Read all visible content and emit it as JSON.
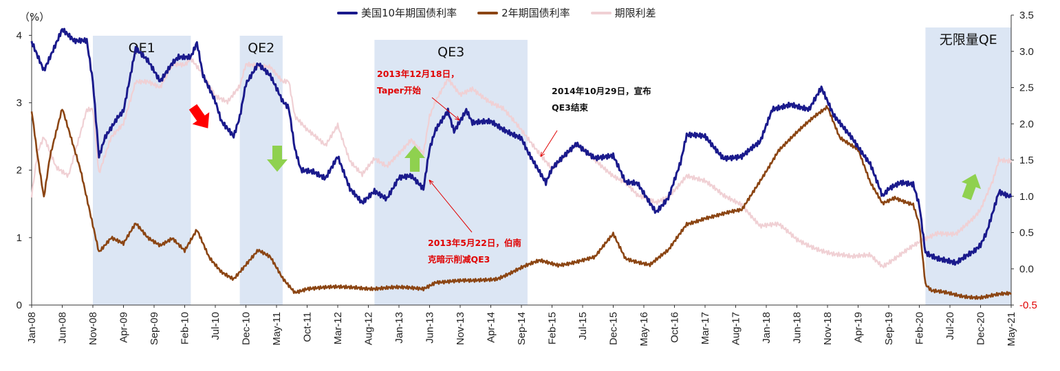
{
  "chart_data": {
    "type": "line",
    "left_axis_label": "（%）",
    "y_left": {
      "min": 0,
      "max": 4.3,
      "ticks": [
        0,
        1,
        2,
        3,
        4
      ]
    },
    "y_right": {
      "min": -0.5,
      "max": 3.5,
      "ticks": [
        "3.5",
        "3.0",
        "2.5",
        "2.0",
        "1.5",
        "1.0",
        "0.5",
        "0.0",
        "-0.5"
      ]
    },
    "x_ticks": [
      "Jan-08",
      "Jun-08",
      "Nov-08",
      "Apr-09",
      "Sep-09",
      "Feb-10",
      "Jul-10",
      "Dec-10",
      "May-11",
      "Oct-11",
      "Mar-12",
      "Aug-12",
      "Jan-13",
      "Jun-13",
      "Nov-13",
      "Apr-14",
      "Sep-14",
      "Feb-15",
      "Jul-15",
      "Dec-15",
      "May-16",
      "Oct-16",
      "Mar-17",
      "Aug-17",
      "Jan-18",
      "Jun-18",
      "Nov-18",
      "Apr-19",
      "Sep-19",
      "Feb-20",
      "Jul-20",
      "Dec-20",
      "May-21"
    ],
    "x_range": [
      "2008-01",
      "2021-05"
    ],
    "grid": false,
    "legend_position": "top-center",
    "series": [
      {
        "name": "美国10年期国债利率",
        "axis": "left",
        "color": "#1a1a8c",
        "points": [
          [
            "2008-01",
            3.9
          ],
          [
            "2008-03",
            3.5
          ],
          [
            "2008-06",
            4.1
          ],
          [
            "2008-08",
            3.9
          ],
          [
            "2008-10",
            3.9
          ],
          [
            "2008-11",
            3.3
          ],
          [
            "2008-12",
            2.2
          ],
          [
            "2009-01",
            2.5
          ],
          [
            "2009-03",
            2.8
          ],
          [
            "2009-04",
            2.9
          ],
          [
            "2009-06",
            3.8
          ],
          [
            "2009-08",
            3.6
          ],
          [
            "2009-10",
            3.3
          ],
          [
            "2009-12",
            3.6
          ],
          [
            "2010-01",
            3.7
          ],
          [
            "2010-03",
            3.7
          ],
          [
            "2010-04",
            3.9
          ],
          [
            "2010-05",
            3.4
          ],
          [
            "2010-07",
            3.0
          ],
          [
            "2010-08",
            2.7
          ],
          [
            "2010-10",
            2.5
          ],
          [
            "2010-11",
            2.8
          ],
          [
            "2010-12",
            3.3
          ],
          [
            "2011-02",
            3.6
          ],
          [
            "2011-04",
            3.4
          ],
          [
            "2011-06",
            3.0
          ],
          [
            "2011-07",
            2.9
          ],
          [
            "2011-08",
            2.3
          ],
          [
            "2011-09",
            2.0
          ],
          [
            "2011-11",
            2.0
          ],
          [
            "2012-01",
            1.9
          ],
          [
            "2012-03",
            2.2
          ],
          [
            "2012-05",
            1.7
          ],
          [
            "2012-07",
            1.5
          ],
          [
            "2012-09",
            1.7
          ],
          [
            "2012-11",
            1.6
          ],
          [
            "2013-01",
            1.9
          ],
          [
            "2013-03",
            1.9
          ],
          [
            "2013-05",
            1.7
          ],
          [
            "2013-06",
            2.3
          ],
          [
            "2013-07",
            2.6
          ],
          [
            "2013-09",
            2.9
          ],
          [
            "2013-10",
            2.6
          ],
          [
            "2013-12",
            2.9
          ],
          [
            "2014-01",
            2.7
          ],
          [
            "2014-04",
            2.7
          ],
          [
            "2014-06",
            2.6
          ],
          [
            "2014-09",
            2.5
          ],
          [
            "2014-10",
            2.3
          ],
          [
            "2015-01",
            1.8
          ],
          [
            "2015-02",
            2.0
          ],
          [
            "2015-06",
            2.4
          ],
          [
            "2015-09",
            2.2
          ],
          [
            "2015-12",
            2.2
          ],
          [
            "2016-02",
            1.8
          ],
          [
            "2016-04",
            1.8
          ],
          [
            "2016-07",
            1.4
          ],
          [
            "2016-09",
            1.6
          ],
          [
            "2016-11",
            2.1
          ],
          [
            "2016-12",
            2.5
          ],
          [
            "2017-03",
            2.5
          ],
          [
            "2017-06",
            2.2
          ],
          [
            "2017-09",
            2.2
          ],
          [
            "2017-12",
            2.4
          ],
          [
            "2018-02",
            2.9
          ],
          [
            "2018-05",
            3.0
          ],
          [
            "2018-08",
            2.9
          ],
          [
            "2018-10",
            3.2
          ],
          [
            "2018-12",
            2.8
          ],
          [
            "2019-03",
            2.5
          ],
          [
            "2019-06",
            2.1
          ],
          [
            "2019-08",
            1.6
          ],
          [
            "2019-09",
            1.7
          ],
          [
            "2019-11",
            1.8
          ],
          [
            "2020-01",
            1.8
          ],
          [
            "2020-02",
            1.5
          ],
          [
            "2020-03",
            0.8
          ],
          [
            "2020-05",
            0.7
          ],
          [
            "2020-08",
            0.6
          ],
          [
            "2020-11",
            0.8
          ],
          [
            "2020-12",
            0.9
          ],
          [
            "2021-01",
            1.1
          ],
          [
            "2021-02",
            1.4
          ],
          [
            "2021-03",
            1.7
          ],
          [
            "2021-05",
            1.6
          ]
        ]
      },
      {
        "name": "2年期国债利率",
        "axis": "left",
        "color": "#8b4513",
        "points": [
          [
            "2008-01",
            2.9
          ],
          [
            "2008-02",
            2.2
          ],
          [
            "2008-03",
            1.6
          ],
          [
            "2008-04",
            2.2
          ],
          [
            "2008-06",
            2.9
          ],
          [
            "2008-07",
            2.6
          ],
          [
            "2008-09",
            2.0
          ],
          [
            "2008-10",
            1.6
          ],
          [
            "2008-11",
            1.2
          ],
          [
            "2008-12",
            0.8
          ],
          [
            "2009-02",
            1.0
          ],
          [
            "2009-04",
            0.9
          ],
          [
            "2009-06",
            1.2
          ],
          [
            "2009-08",
            1.0
          ],
          [
            "2009-10",
            0.9
          ],
          [
            "2009-12",
            1.0
          ],
          [
            "2010-02",
            0.8
          ],
          [
            "2010-04",
            1.1
          ],
          [
            "2010-06",
            0.7
          ],
          [
            "2010-08",
            0.5
          ],
          [
            "2010-10",
            0.4
          ],
          [
            "2010-12",
            0.6
          ],
          [
            "2011-02",
            0.8
          ],
          [
            "2011-04",
            0.7
          ],
          [
            "2011-06",
            0.4
          ],
          [
            "2011-08",
            0.2
          ],
          [
            "2011-10",
            0.25
          ],
          [
            "2012-01",
            0.25
          ],
          [
            "2012-06",
            0.27
          ],
          [
            "2012-09",
            0.25
          ],
          [
            "2013-01",
            0.25
          ],
          [
            "2013-05",
            0.25
          ],
          [
            "2013-07",
            0.35
          ],
          [
            "2013-10",
            0.35
          ],
          [
            "2014-01",
            0.35
          ],
          [
            "2014-05",
            0.4
          ],
          [
            "2014-09",
            0.55
          ],
          [
            "2014-12",
            0.65
          ],
          [
            "2015-03",
            0.6
          ],
          [
            "2015-06",
            0.65
          ],
          [
            "2015-09",
            0.7
          ],
          [
            "2015-12",
            1.05
          ],
          [
            "2016-02",
            0.7
          ],
          [
            "2016-06",
            0.6
          ],
          [
            "2016-09",
            0.8
          ],
          [
            "2016-12",
            1.2
          ],
          [
            "2017-03",
            1.3
          ],
          [
            "2017-06",
            1.35
          ],
          [
            "2017-09",
            1.4
          ],
          [
            "2017-12",
            1.85
          ],
          [
            "2018-03",
            2.3
          ],
          [
            "2018-06",
            2.55
          ],
          [
            "2018-09",
            2.8
          ],
          [
            "2018-11",
            2.95
          ],
          [
            "2019-01",
            2.5
          ],
          [
            "2019-04",
            2.3
          ],
          [
            "2019-06",
            1.8
          ],
          [
            "2019-08",
            1.5
          ],
          [
            "2019-10",
            1.6
          ],
          [
            "2020-01",
            1.5
          ],
          [
            "2020-02",
            1.2
          ],
          [
            "2020-03",
            0.3
          ],
          [
            "2020-04",
            0.2
          ],
          [
            "2020-06",
            0.18
          ],
          [
            "2020-09",
            0.14
          ],
          [
            "2020-12",
            0.12
          ],
          [
            "2021-03",
            0.15
          ],
          [
            "2021-05",
            0.16
          ]
        ]
      },
      {
        "name": "期限利差",
        "axis": "right",
        "color": "#f0d0d4",
        "points": [
          [
            "2008-01",
            1.0
          ],
          [
            "2008-02",
            1.6
          ],
          [
            "2008-03",
            1.8
          ],
          [
            "2008-05",
            1.4
          ],
          [
            "2008-07",
            1.3
          ],
          [
            "2008-09",
            1.9
          ],
          [
            "2008-10",
            2.2
          ],
          [
            "2008-11",
            2.2
          ],
          [
            "2008-12",
            1.3
          ],
          [
            "2009-02",
            1.8
          ],
          [
            "2009-04",
            2.0
          ],
          [
            "2009-06",
            2.6
          ],
          [
            "2009-08",
            2.6
          ],
          [
            "2009-10",
            2.5
          ],
          [
            "2009-12",
            2.8
          ],
          [
            "2010-02",
            2.8
          ],
          [
            "2010-03",
            2.9
          ],
          [
            "2010-05",
            2.7
          ],
          [
            "2010-07",
            2.4
          ],
          [
            "2010-09",
            2.3
          ],
          [
            "2010-11",
            2.5
          ],
          [
            "2010-12",
            2.8
          ],
          [
            "2011-02",
            2.8
          ],
          [
            "2011-04",
            2.8
          ],
          [
            "2011-06",
            2.6
          ],
          [
            "2011-07",
            2.6
          ],
          [
            "2011-08",
            2.1
          ],
          [
            "2011-10",
            1.9
          ],
          [
            "2012-01",
            1.7
          ],
          [
            "2012-03",
            2.0
          ],
          [
            "2012-05",
            1.5
          ],
          [
            "2012-07",
            1.3
          ],
          [
            "2012-09",
            1.5
          ],
          [
            "2012-11",
            1.4
          ],
          [
            "2013-01",
            1.6
          ],
          [
            "2013-03",
            1.8
          ],
          [
            "2013-05",
            1.6
          ],
          [
            "2013-06",
            2.1
          ],
          [
            "2013-07",
            2.3
          ],
          [
            "2013-09",
            2.6
          ],
          [
            "2013-11",
            2.4
          ],
          [
            "2014-01",
            2.5
          ],
          [
            "2014-04",
            2.3
          ],
          [
            "2014-06",
            2.2
          ],
          [
            "2014-09",
            1.9
          ],
          [
            "2014-12",
            1.6
          ],
          [
            "2015-02",
            1.4
          ],
          [
            "2015-06",
            1.7
          ],
          [
            "2015-09",
            1.5
          ],
          [
            "2015-12",
            1.3
          ],
          [
            "2016-02",
            1.2
          ],
          [
            "2016-04",
            1.0
          ],
          [
            "2016-07",
            0.9
          ],
          [
            "2016-09",
            1.0
          ],
          [
            "2016-12",
            1.3
          ],
          [
            "2017-03",
            1.2
          ],
          [
            "2017-06",
            1.0
          ],
          [
            "2017-09",
            0.9
          ],
          [
            "2017-12",
            0.6
          ],
          [
            "2018-03",
            0.6
          ],
          [
            "2018-06",
            0.4
          ],
          [
            "2018-09",
            0.3
          ],
          [
            "2018-12",
            0.2
          ],
          [
            "2019-03",
            0.15
          ],
          [
            "2019-06",
            0.2
          ],
          [
            "2019-08",
            0.05
          ],
          [
            "2019-09",
            0.1
          ],
          [
            "2019-11",
            0.2
          ],
          [
            "2020-01",
            0.3
          ],
          [
            "2020-03",
            0.4
          ],
          [
            "2020-05",
            0.5
          ],
          [
            "2020-08",
            0.5
          ],
          [
            "2020-11",
            0.7
          ],
          [
            "2020-12",
            0.8
          ],
          [
            "2021-02",
            1.2
          ],
          [
            "2021-03",
            1.5
          ],
          [
            "2021-05",
            1.5
          ]
        ]
      }
    ],
    "shaded_regions": [
      {
        "label": "QE1",
        "start": "2008-11",
        "end": "2010-03"
      },
      {
        "label": "QE2",
        "start": "2010-11",
        "end": "2011-06"
      },
      {
        "label": "QE3",
        "start": "2012-09",
        "end": "2014-10"
      },
      {
        "label": "无限量QE",
        "start": "2020-03",
        "end": "2021-05"
      }
    ],
    "annotations": [
      {
        "lines": [
          "2013年12月18日，",
          "Taper开始"
        ],
        "color": "red"
      },
      {
        "lines": [
          "2014年10月29日，宣布",
          "QE3结束"
        ],
        "color": "black"
      },
      {
        "lines": [
          "2013年5月22日，伯南",
          "克暗示削减QE3"
        ],
        "color": "red"
      }
    ],
    "arrows": [
      {
        "direction": "down",
        "color": "#ff0000"
      },
      {
        "direction": "down",
        "color": "#8fd14f"
      },
      {
        "direction": "up",
        "color": "#8fd14f"
      },
      {
        "direction": "up",
        "color": "#8fd14f"
      }
    ]
  }
}
